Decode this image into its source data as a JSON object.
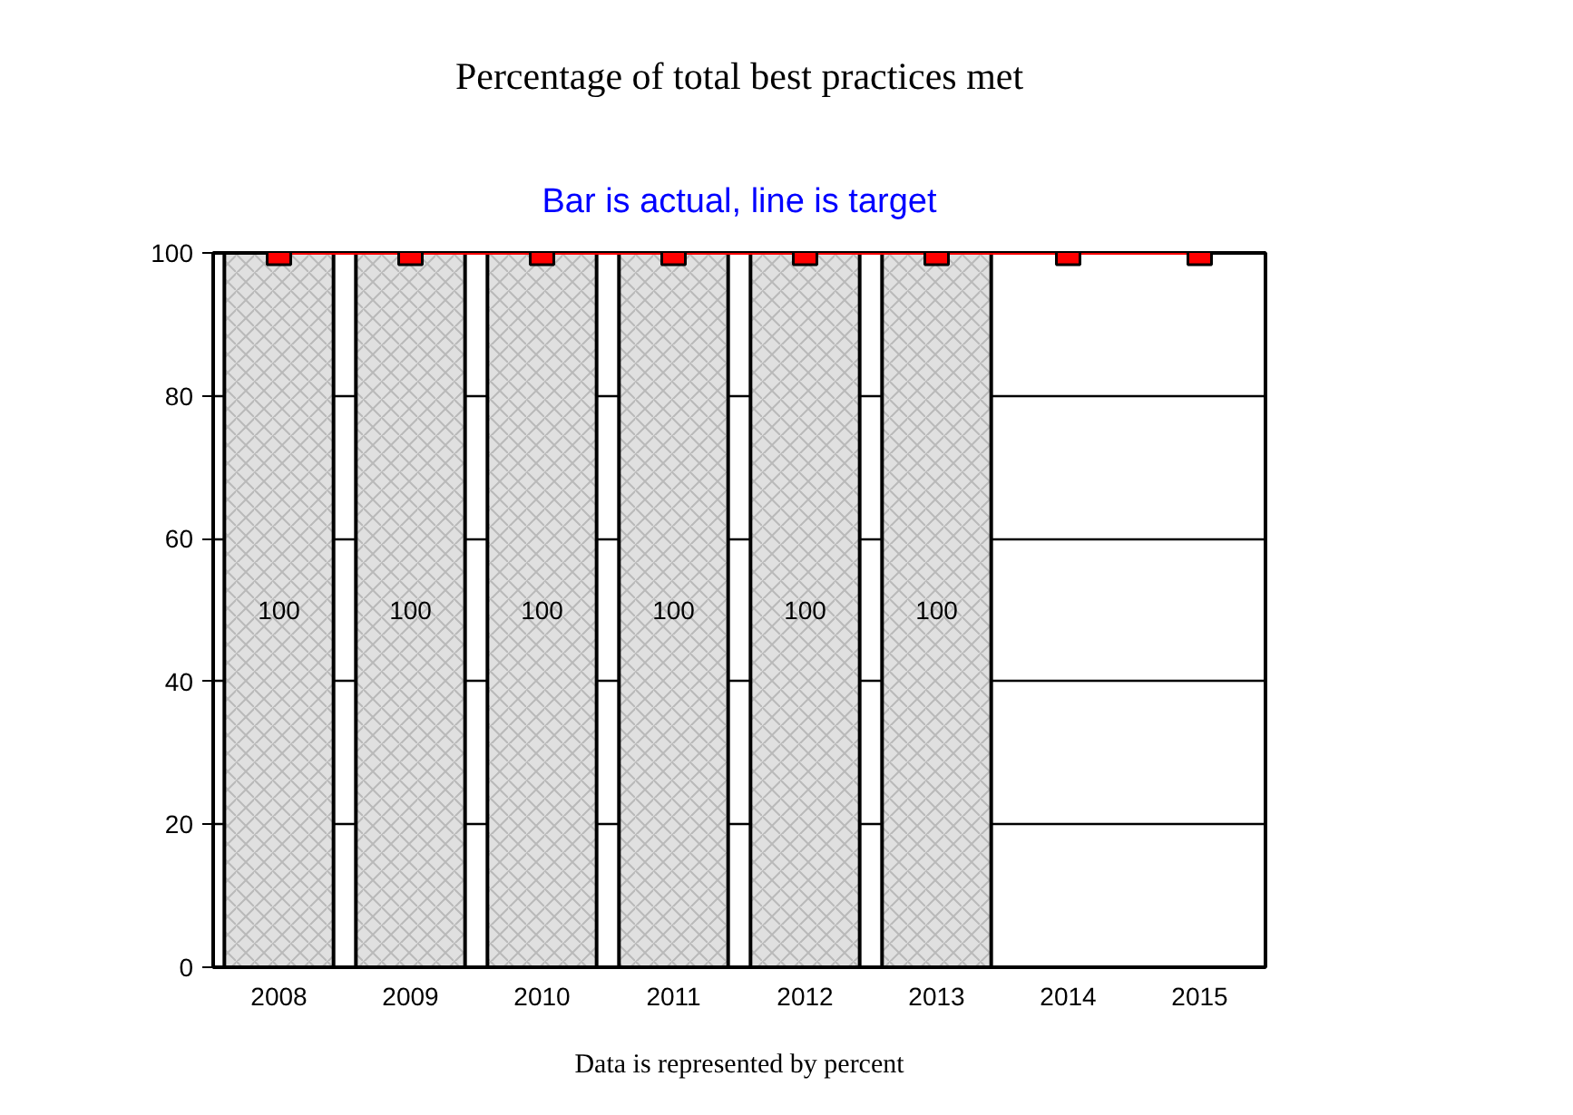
{
  "chart_data": {
    "type": "bar",
    "title": "Percentage of total best practices met",
    "subtitle": "Bar is actual, line is target",
    "annotations": [
      "Data is represented by percent"
    ],
    "categories": [
      "2008",
      "2009",
      "2010",
      "2011",
      "2012",
      "2013",
      "2014",
      "2015"
    ],
    "series": [
      {
        "color": "#e0e0e0",
        "values": [
          100,
          100,
          100,
          100,
          100,
          100,
          null,
          null
        ],
        "value_labels": [
          "100",
          "100",
          "100",
          "100",
          "100",
          "100",
          null,
          null
        ]
      },
      {
        "type": "line",
        "color": "#ff0000",
        "marker": "square",
        "values": [
          100,
          100,
          100,
          100,
          100,
          100,
          100,
          100
        ]
      }
    ],
    "ylim": [
      0,
      100
    ],
    "yticks": [
      0,
      20,
      40,
      60,
      80,
      100
    ],
    "grid": "y"
  }
}
